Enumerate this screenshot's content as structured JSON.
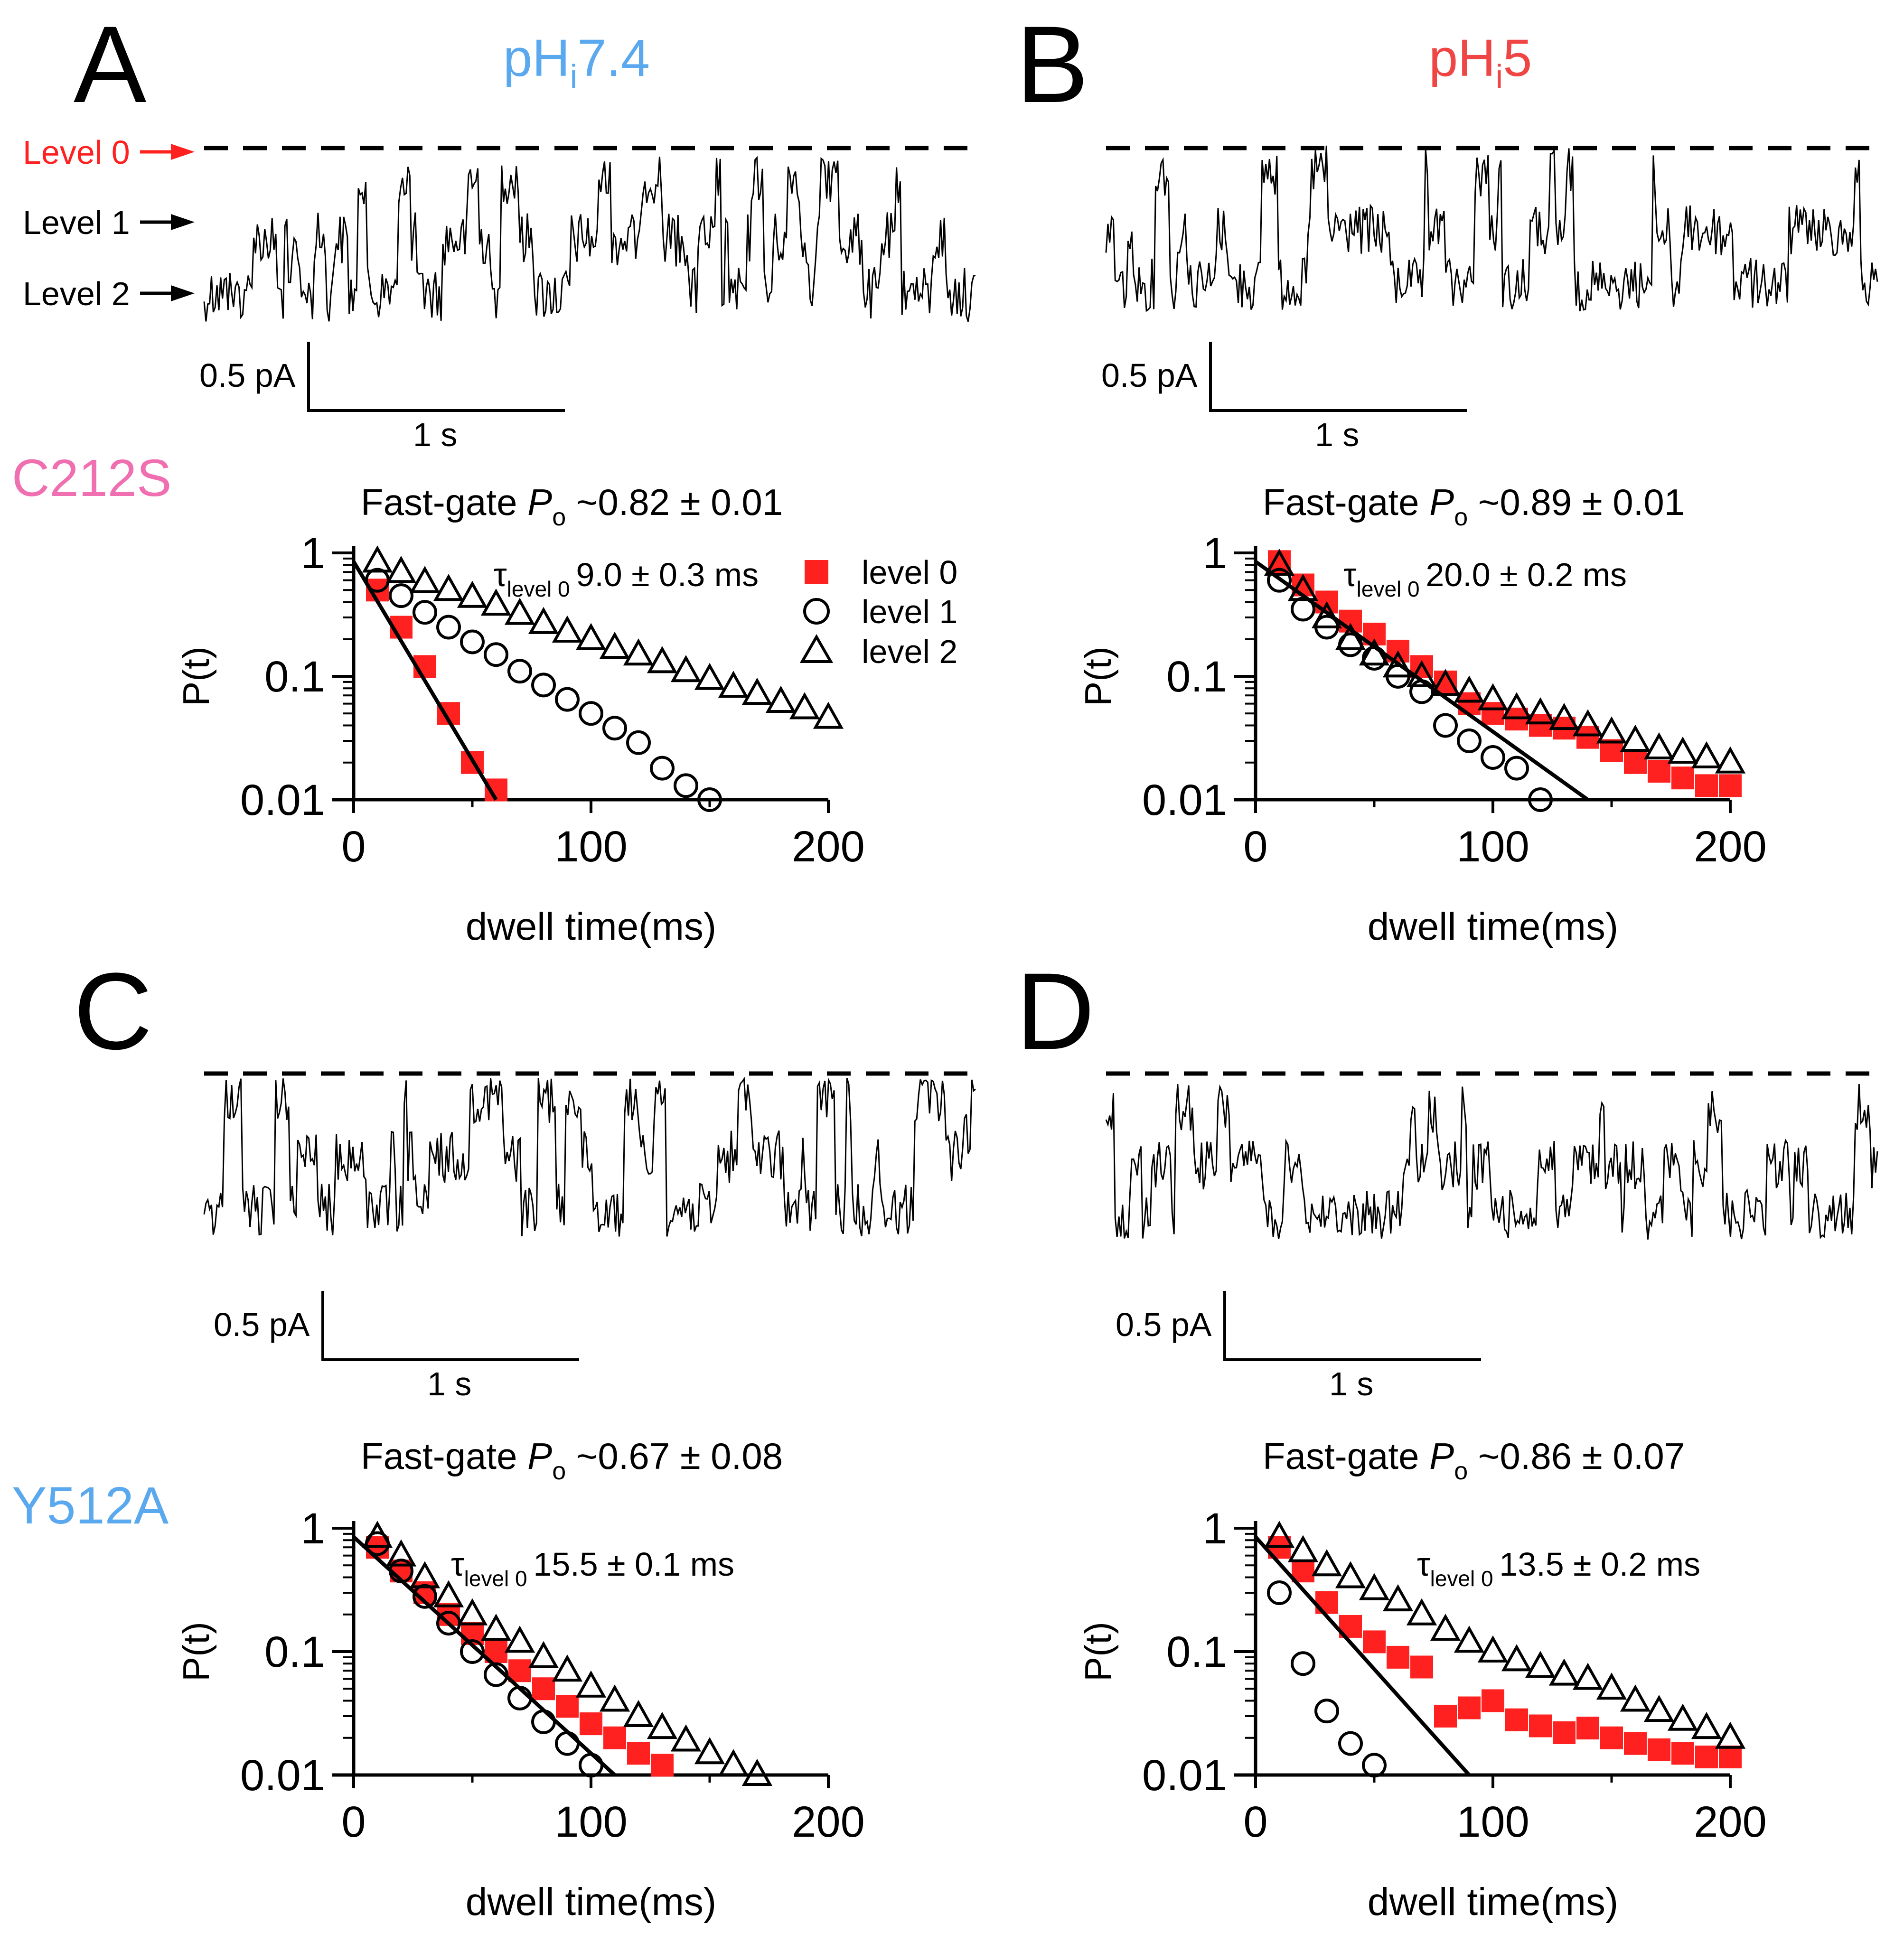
{
  "panel_labels": [
    "A",
    "B",
    "C",
    "D"
  ],
  "conditions": {
    "left": {
      "text": "pH",
      "sub": "i",
      "after": "7.4",
      "color": "#5aa8ee"
    },
    "right": {
      "text": "pH",
      "sub": "i",
      "after": "5",
      "color": "#f04545"
    }
  },
  "mutants": {
    "top": {
      "text": "C212S",
      "color": "#f06fb0"
    },
    "bottom": {
      "text": "Y512A",
      "color": "#5aa8ee"
    }
  },
  "level_labels": [
    {
      "text": "Level 0",
      "color": "#ff2020"
    },
    {
      "text": "Level 1",
      "color": "#000000"
    },
    {
      "text": "Level 2",
      "color": "#000000"
    }
  ],
  "scale_bar": {
    "current": "0.5 pA",
    "time": "1 s"
  },
  "colors": {
    "level0": "#ff2020",
    "ink": "#000000"
  },
  "chart_data": [
    {
      "panel": "A",
      "type": "scatter",
      "title_prefix": "Fast-gate ",
      "title_symbol": "P",
      "title_sub": "o",
      "title_value": " ~0.82 ± 0.01",
      "tau_symbol": "τ",
      "tau_sub": "level 0",
      "tau_value": "9.0 ± 0.3 ms",
      "xlabel": "dwell time(ms)",
      "ylabel": "P(t)",
      "xlim": [
        0,
        200
      ],
      "ylim": [
        0.01,
        1
      ],
      "yscale": "log",
      "xticks": [
        "0",
        "100",
        "200"
      ],
      "yticks": [
        "1",
        "0.1",
        "0.01"
      ],
      "legend": [
        "level 0",
        "level 1",
        "level 2"
      ],
      "series": [
        {
          "name": "level 0",
          "marker": "square",
          "color": "#ff2020",
          "x": [
            10,
            20,
            30,
            40,
            50,
            60
          ],
          "y": [
            0.5,
            0.25,
            0.12,
            0.05,
            0.02,
            0.012
          ]
        },
        {
          "name": "level 1",
          "marker": "circle",
          "color": "#000000",
          "x": [
            10,
            20,
            30,
            40,
            50,
            60,
            70,
            80,
            90,
            100,
            110,
            120,
            130,
            140,
            150
          ],
          "y": [
            0.6,
            0.45,
            0.33,
            0.25,
            0.19,
            0.15,
            0.11,
            0.085,
            0.065,
            0.05,
            0.038,
            0.029,
            0.018,
            0.013,
            0.01
          ]
        },
        {
          "name": "level 2",
          "marker": "triangle",
          "color": "#000000",
          "x": [
            10,
            20,
            30,
            40,
            50,
            60,
            70,
            80,
            90,
            100,
            110,
            120,
            130,
            140,
            150,
            160,
            170,
            180,
            190,
            200
          ],
          "y": [
            0.85,
            0.7,
            0.58,
            0.5,
            0.44,
            0.38,
            0.32,
            0.27,
            0.23,
            0.2,
            0.17,
            0.15,
            0.13,
            0.11,
            0.095,
            0.082,
            0.072,
            0.062,
            0.055,
            0.046
          ]
        }
      ],
      "fit": {
        "x": [
          0,
          60
        ],
        "y": [
          0.85,
          0.01
        ]
      }
    },
    {
      "panel": "B",
      "type": "scatter",
      "title_prefix": "Fast-gate ",
      "title_symbol": "P",
      "title_sub": "o",
      "title_value": " ~0.89 ± 0.01",
      "tau_symbol": "τ",
      "tau_sub": "level 0",
      "tau_value": "20.0 ± 0.2 ms",
      "xlabel": "dwell time(ms)",
      "ylabel": "P(t)",
      "xlim": [
        0,
        200
      ],
      "ylim": [
        0.01,
        1
      ],
      "yscale": "log",
      "xticks": [
        "0",
        "100",
        "200"
      ],
      "yticks": [
        "1",
        "0.1",
        "0.01"
      ],
      "series": [
        {
          "name": "level 0",
          "marker": "square",
          "color": "#ff2020",
          "x": [
            10,
            20,
            30,
            40,
            50,
            60,
            70,
            80,
            90,
            100,
            110,
            120,
            130,
            140,
            150,
            160,
            170,
            180,
            190,
            200
          ],
          "y": [
            0.85,
            0.55,
            0.4,
            0.28,
            0.22,
            0.16,
            0.12,
            0.09,
            0.06,
            0.05,
            0.045,
            0.04,
            0.038,
            0.032,
            0.025,
            0.02,
            0.017,
            0.015,
            0.013,
            0.013
          ]
        },
        {
          "name": "level 1",
          "marker": "circle",
          "color": "#000000",
          "x": [
            10,
            20,
            30,
            40,
            50,
            60,
            70,
            80,
            90,
            100,
            110,
            120
          ],
          "y": [
            0.6,
            0.35,
            0.25,
            0.18,
            0.14,
            0.1,
            0.075,
            0.04,
            0.03,
            0.022,
            0.018,
            0.01
          ]
        },
        {
          "name": "level 2",
          "marker": "triangle",
          "color": "#000000",
          "x": [
            10,
            20,
            30,
            40,
            50,
            60,
            70,
            80,
            90,
            100,
            110,
            120,
            130,
            140,
            150,
            160,
            170,
            180,
            190,
            200
          ],
          "y": [
            0.8,
            0.5,
            0.3,
            0.2,
            0.15,
            0.12,
            0.1,
            0.085,
            0.075,
            0.065,
            0.055,
            0.05,
            0.045,
            0.04,
            0.035,
            0.03,
            0.026,
            0.024,
            0.022,
            0.02
          ]
        }
      ],
      "fit": {
        "x": [
          0,
          140
        ],
        "y": [
          0.85,
          0.01
        ]
      }
    },
    {
      "panel": "C",
      "type": "scatter",
      "title_prefix": "Fast-gate ",
      "title_symbol": "P",
      "title_sub": "o",
      "title_value": " ~0.67 ± 0.08",
      "tau_symbol": "τ",
      "tau_sub": "level 0",
      "tau_value": "15.5 ± 0.1 ms",
      "xlabel": "dwell time(ms)",
      "ylabel": "P(t)",
      "xlim": [
        0,
        200
      ],
      "ylim": [
        0.01,
        1
      ],
      "yscale": "log",
      "xticks": [
        "0",
        "100",
        "200"
      ],
      "yticks": [
        "1",
        "0.1",
        "0.01"
      ],
      "series": [
        {
          "name": "level 0",
          "marker": "square",
          "color": "#ff2020",
          "x": [
            10,
            20,
            30,
            40,
            50,
            60,
            70,
            80,
            90,
            100,
            110,
            120,
            130
          ],
          "y": [
            0.7,
            0.45,
            0.3,
            0.2,
            0.14,
            0.1,
            0.07,
            0.05,
            0.036,
            0.026,
            0.02,
            0.015,
            0.012
          ]
        },
        {
          "name": "level 1",
          "marker": "circle",
          "color": "#000000",
          "x": [
            10,
            20,
            30,
            40,
            50,
            60,
            70,
            80,
            90,
            100
          ],
          "y": [
            0.75,
            0.45,
            0.28,
            0.17,
            0.1,
            0.065,
            0.042,
            0.027,
            0.018,
            0.012
          ]
        },
        {
          "name": "level 2",
          "marker": "triangle",
          "color": "#000000",
          "x": [
            10,
            20,
            30,
            40,
            50,
            60,
            70,
            80,
            90,
            100,
            110,
            120,
            130,
            140,
            150,
            160,
            170
          ],
          "y": [
            0.85,
            0.6,
            0.4,
            0.28,
            0.2,
            0.15,
            0.12,
            0.09,
            0.07,
            0.052,
            0.04,
            0.03,
            0.024,
            0.019,
            0.015,
            0.012,
            0.01
          ]
        }
      ],
      "fit": {
        "x": [
          0,
          110
        ],
        "y": [
          0.85,
          0.01
        ]
      }
    },
    {
      "panel": "D",
      "type": "scatter",
      "title_prefix": "Fast-gate ",
      "title_symbol": "P",
      "title_sub": "o",
      "title_value": " ~0.86 ± 0.07",
      "tau_symbol": "τ",
      "tau_sub": "level 0",
      "tau_value": "13.5 ± 0.2 ms",
      "xlabel": "dwell time(ms)",
      "ylabel": "P(t)",
      "xlim": [
        0,
        200
      ],
      "ylim": [
        0.01,
        1
      ],
      "yscale": "log",
      "xticks": [
        "0",
        "100",
        "200"
      ],
      "yticks": [
        "1",
        "0.1",
        "0.01"
      ],
      "series": [
        {
          "name": "level 0",
          "marker": "square",
          "color": "#ff2020",
          "x": [
            10,
            20,
            30,
            40,
            50,
            60,
            70,
            80,
            90,
            100,
            110,
            120,
            130,
            140,
            150,
            160,
            170,
            180,
            190,
            200
          ],
          "y": [
            0.7,
            0.45,
            0.25,
            0.16,
            0.12,
            0.09,
            0.075,
            0.03,
            0.035,
            0.04,
            0.028,
            0.025,
            0.022,
            0.024,
            0.02,
            0.018,
            0.016,
            0.015,
            0.014,
            0.014
          ]
        },
        {
          "name": "level 1",
          "marker": "circle",
          "color": "#000000",
          "x": [
            10,
            20,
            30,
            40,
            50
          ],
          "y": [
            0.3,
            0.08,
            0.033,
            0.018,
            0.012
          ]
        },
        {
          "name": "level 2",
          "marker": "triangle",
          "color": "#000000",
          "x": [
            10,
            20,
            30,
            40,
            50,
            60,
            70,
            80,
            90,
            100,
            110,
            120,
            130,
            140,
            150,
            160,
            170,
            180,
            190,
            200
          ],
          "y": [
            0.85,
            0.65,
            0.5,
            0.4,
            0.32,
            0.26,
            0.2,
            0.15,
            0.12,
            0.1,
            0.085,
            0.075,
            0.065,
            0.06,
            0.05,
            0.04,
            0.033,
            0.028,
            0.024,
            0.02
          ]
        }
      ],
      "fit": {
        "x": [
          0,
          90
        ],
        "y": [
          0.85,
          0.01
        ]
      }
    }
  ]
}
